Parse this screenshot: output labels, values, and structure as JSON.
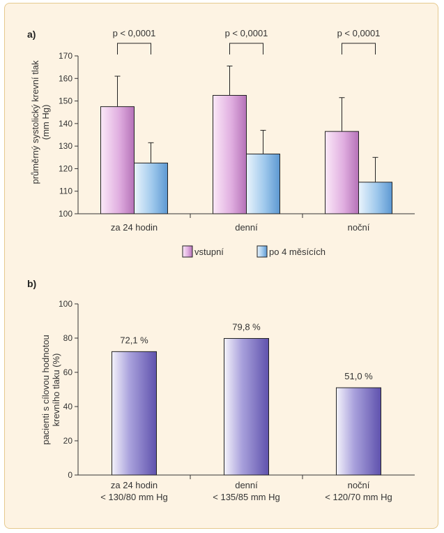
{
  "chart_data": [
    {
      "panel_label": "a)",
      "type": "bar",
      "ylabel": [
        "průměrný systolický krevní tlak",
        "(mm Hg)"
      ],
      "ylim": [
        100,
        170
      ],
      "yticks": [
        100,
        110,
        120,
        130,
        140,
        150,
        160,
        170
      ],
      "categories": [
        "za 24 hodin",
        "denní",
        "noční"
      ],
      "series": [
        {
          "name": "vstupní",
          "values": [
            147.5,
            152.5,
            136.5
          ],
          "errors": [
            13.5,
            13,
            15
          ]
        },
        {
          "name": "po 4 měsících",
          "values": [
            122.5,
            126.5,
            114
          ],
          "errors": [
            9,
            10.5,
            11
          ]
        }
      ],
      "annotations": [
        "p < 0,0001",
        "p < 0,0001",
        "p < 0,0001"
      ],
      "legend_position": "bottom-right",
      "colors": {
        "vstupni": "#c98ac9",
        "po4": "#7fb3e0"
      }
    },
    {
      "panel_label": "b)",
      "type": "bar",
      "ylabel": [
        "pacienti s cílovou hodnotou",
        "krevního tlaku (%)"
      ],
      "ylim": [
        0,
        100
      ],
      "yticks": [
        0,
        20,
        40,
        60,
        80,
        100
      ],
      "categories": [
        [
          "za 24 hodin",
          "< 130/80 mm Hg"
        ],
        [
          "denní",
          "< 135/85 mm Hg"
        ],
        [
          "noční",
          "< 120/70 mm Hg"
        ]
      ],
      "values": [
        72.1,
        79.8,
        51.0
      ],
      "value_labels": [
        "72,1 %",
        "79,8 %",
        "51,0 %"
      ],
      "colors": {
        "bar": "#7f71c4"
      }
    }
  ]
}
